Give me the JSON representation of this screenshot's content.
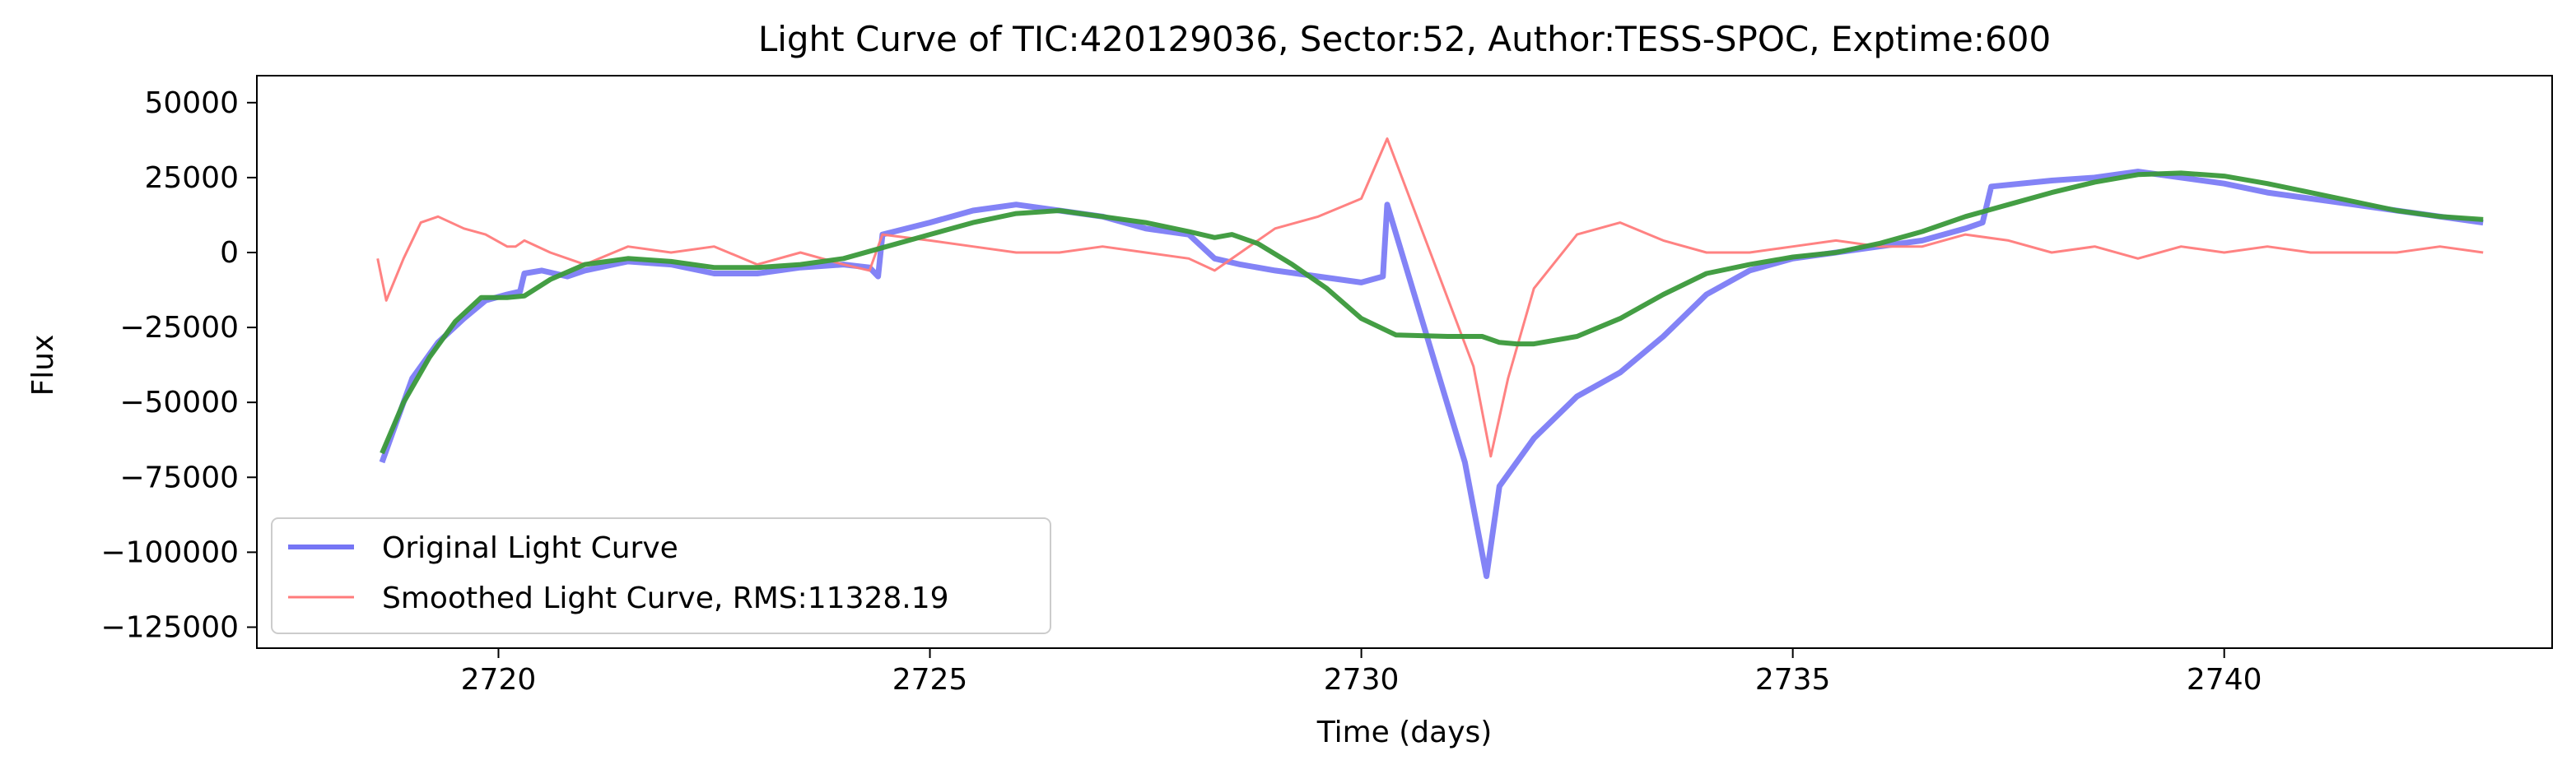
{
  "chart_data": {
    "type": "line",
    "title": "Light Curve of TIC:420129036, Sector:52, Author:TESS-SPOC, Exptime:600",
    "xlabel": "Time (days)",
    "ylabel": "Flux",
    "xlim": [
      2717.2,
      2743.8
    ],
    "ylim": [
      -132000,
      59000
    ],
    "xticks": [
      2720,
      2725,
      2730,
      2735,
      2740
    ],
    "xtick_labels": [
      "2720",
      "2725",
      "2730",
      "2735",
      "2740"
    ],
    "yticks": [
      50000,
      25000,
      0,
      -25000,
      -50000,
      -75000,
      -100000,
      -125000
    ],
    "ytick_labels": [
      "50000",
      "25000",
      "0",
      "−25000",
      "−50000",
      "−75000",
      "−100000",
      "−125000"
    ],
    "grid": false,
    "legend_position": "lower-left",
    "legend": [
      {
        "label": "Original Light Curve",
        "color": "#7575f5"
      },
      {
        "label": "Smoothed Light Curve, RMS:11328.19",
        "color": "#ff7b7b"
      }
    ],
    "series": [
      {
        "name": "Original Light Curve",
        "color": "#7575f5",
        "x": [
          2718.65,
          2718.8,
          2719.0,
          2719.3,
          2719.6,
          2719.85,
          2720.1,
          2720.25,
          2720.3,
          2720.5,
          2720.8,
          2721.0,
          2721.5,
          2722.0,
          2722.5,
          2723.0,
          2723.5,
          2724.0,
          2724.3,
          2724.4,
          2724.45,
          2725.0,
          2725.5,
          2726.0,
          2726.5,
          2727.0,
          2727.5,
          2728.0,
          2728.3,
          2728.6,
          2729.0,
          2729.5,
          2730.0,
          2730.25,
          2730.3,
          2731.2,
          2731.45,
          2731.6,
          2732.0,
          2732.5,
          2733.0,
          2733.5,
          2734.0,
          2734.5,
          2735.0,
          2735.5,
          2736.0,
          2736.5,
          2737.0,
          2737.2,
          2737.3,
          2738.0,
          2738.5,
          2739.0,
          2739.5,
          2740.0,
          2740.5,
          2741.0,
          2741.5,
          2742.0,
          2742.5,
          2743.0
        ],
        "y": [
          -70000,
          -58000,
          -42000,
          -30000,
          -22000,
          -16000,
          -14000,
          -13000,
          -7000,
          -6000,
          -8000,
          -6000,
          -3000,
          -4000,
          -7000,
          -7000,
          -5000,
          -4000,
          -5000,
          -8000,
          6000,
          10000,
          14000,
          16000,
          14000,
          12000,
          8000,
          6000,
          -2000,
          -4000,
          -6000,
          -8000,
          -10000,
          -8000,
          16000,
          -70000,
          -108000,
          -78000,
          -62000,
          -48000,
          -40000,
          -28000,
          -14000,
          -6000,
          -2000,
          0,
          2000,
          4000,
          8000,
          10000,
          22000,
          24000,
          25000,
          27000,
          25000,
          23000,
          20000,
          18000,
          16000,
          14000,
          12000,
          10000
        ]
      },
      {
        "name": "Smoothed Light Curve, RMS:11328.19",
        "color": "#ff7b7b",
        "x": [
          2718.6,
          2718.7,
          2718.9,
          2719.1,
          2719.3,
          2719.6,
          2719.85,
          2720.1,
          2720.2,
          2720.3,
          2720.6,
          2721.0,
          2721.5,
          2722.0,
          2722.5,
          2723.0,
          2723.5,
          2724.0,
          2724.3,
          2724.45,
          2725.0,
          2725.5,
          2726.0,
          2726.5,
          2727.0,
          2727.5,
          2728.0,
          2728.3,
          2728.6,
          2729.0,
          2729.5,
          2730.0,
          2730.3,
          2731.3,
          2731.5,
          2731.7,
          2732.0,
          2732.5,
          2733.0,
          2733.5,
          2734.0,
          2734.5,
          2735.0,
          2735.5,
          2736.0,
          2736.5,
          2737.0,
          2737.5,
          2738.0,
          2738.5,
          2739.0,
          2739.5,
          2740.0,
          2740.5,
          2741.0,
          2741.5,
          2742.0,
          2742.5,
          2743.0
        ],
        "y": [
          -2000,
          -16000,
          -2000,
          10000,
          12000,
          8000,
          6000,
          2000,
          2000,
          4000,
          0,
          -4000,
          2000,
          0,
          2000,
          -4000,
          0,
          -4000,
          -6000,
          6000,
          4000,
          2000,
          0,
          0,
          2000,
          0,
          -2000,
          -6000,
          0,
          8000,
          12000,
          18000,
          38000,
          -38000,
          -68000,
          -42000,
          -12000,
          6000,
          10000,
          4000,
          0,
          0,
          2000,
          4000,
          2000,
          2000,
          6000,
          4000,
          0,
          2000,
          -2000,
          2000,
          0,
          2000,
          0,
          0,
          0,
          2000,
          0
        ]
      },
      {
        "name": "",
        "color": "#3a993a",
        "x": [
          2718.65,
          2718.9,
          2719.2,
          2719.5,
          2719.8,
          2720.1,
          2720.3,
          2720.6,
          2721.0,
          2721.5,
          2722.0,
          2722.5,
          2723.0,
          2723.5,
          2724.0,
          2724.5,
          2725.0,
          2725.5,
          2726.0,
          2726.5,
          2727.0,
          2727.5,
          2728.0,
          2728.3,
          2728.5,
          2728.8,
          2729.2,
          2729.6,
          2730.0,
          2730.4,
          2731.0,
          2731.4,
          2731.6,
          2731.8,
          2732.0,
          2732.5,
          2733.0,
          2733.5,
          2734.0,
          2734.5,
          2735.0,
          2735.5,
          2736.0,
          2736.5,
          2737.0,
          2737.5,
          2738.0,
          2738.5,
          2739.0,
          2739.5,
          2740.0,
          2740.5,
          2741.0,
          2741.5,
          2742.0,
          2742.5,
          2743.0
        ],
        "y": [
          -67000,
          -50000,
          -35000,
          -23000,
          -15000,
          -15000,
          -14500,
          -9000,
          -4000,
          -2000,
          -3000,
          -5000,
          -5000,
          -4000,
          -2000,
          2000,
          6000,
          10000,
          13000,
          14000,
          12000,
          10000,
          7000,
          5000,
          6000,
          3000,
          -4000,
          -12000,
          -22000,
          -27500,
          -28000,
          -28000,
          -30000,
          -30500,
          -30500,
          -28000,
          -22000,
          -14000,
          -7000,
          -4000,
          -1500,
          0,
          3000,
          7000,
          12000,
          16000,
          20000,
          23500,
          26000,
          26500,
          25500,
          23000,
          20000,
          17000,
          14000,
          12000,
          11000
        ]
      }
    ]
  }
}
